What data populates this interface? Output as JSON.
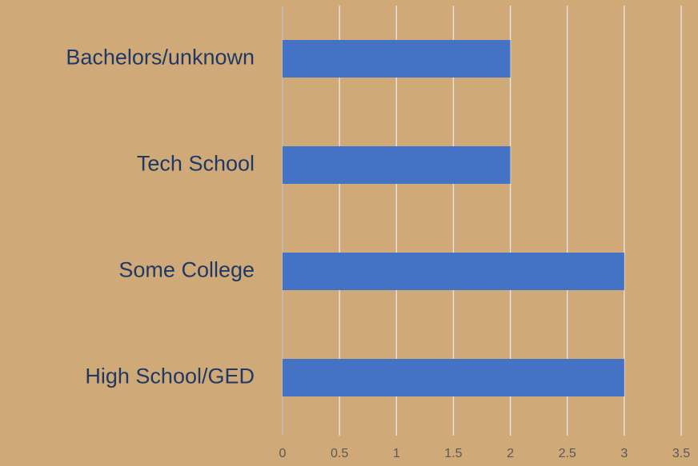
{
  "chart_data": {
    "type": "bar",
    "orientation": "horizontal",
    "categories": [
      "Bachelors/unknown",
      "Tech School",
      "Some College",
      "High School/GED"
    ],
    "values": [
      2,
      2,
      3,
      3
    ],
    "color": "#4472c4",
    "xlim": [
      0,
      3.5
    ],
    "xticks": [
      0,
      0.5,
      1,
      1.5,
      2,
      2.5,
      3,
      3.5
    ],
    "grid": true
  }
}
